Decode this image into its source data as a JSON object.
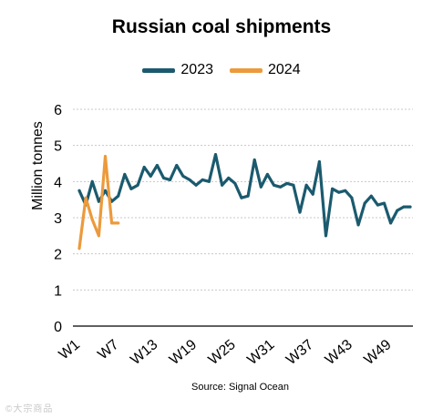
{
  "chart_data": {
    "type": "line",
    "title": "Russian coal shipments",
    "ylabel": "Million tonnes",
    "xlabel": "",
    "ylim": [
      0,
      6
    ],
    "yticks": [
      0,
      1,
      2,
      3,
      4,
      5,
      6
    ],
    "grid": true,
    "legend_position": "top-center",
    "x_tick_labels": [
      {
        "week": 1,
        "label": "W1"
      },
      {
        "week": 7,
        "label": "W7"
      },
      {
        "week": 13,
        "label": "W13"
      },
      {
        "week": 19,
        "label": "W19"
      },
      {
        "week": 25,
        "label": "W25"
      },
      {
        "week": 31,
        "label": "W31"
      },
      {
        "week": 37,
        "label": "W37"
      },
      {
        "week": 43,
        "label": "W43"
      },
      {
        "week": 49,
        "label": "W49"
      }
    ],
    "series": [
      {
        "name": "2023",
        "color": "#1b5a6e",
        "x": [
          1,
          2,
          3,
          4,
          5,
          6,
          7,
          8,
          9,
          10,
          11,
          12,
          13,
          14,
          15,
          16,
          17,
          18,
          19,
          20,
          21,
          22,
          23,
          24,
          25,
          26,
          27,
          28,
          29,
          30,
          31,
          32,
          33,
          34,
          35,
          36,
          37,
          38,
          39,
          40,
          41,
          42,
          43,
          44,
          45,
          46,
          47,
          48,
          49,
          50,
          51,
          52
        ],
        "values": [
          3.75,
          3.35,
          4.0,
          3.45,
          3.75,
          3.45,
          3.6,
          4.2,
          3.8,
          3.9,
          4.4,
          4.15,
          4.45,
          4.1,
          4.05,
          4.45,
          4.15,
          4.05,
          3.9,
          4.05,
          4.0,
          4.75,
          3.9,
          4.1,
          3.95,
          3.55,
          3.6,
          4.6,
          3.85,
          4.2,
          3.9,
          3.85,
          3.95,
          3.9,
          3.15,
          3.9,
          3.65,
          4.55,
          2.5,
          3.8,
          3.7,
          3.75,
          3.55,
          2.8,
          3.4,
          3.6,
          3.35,
          3.4,
          2.85,
          3.2,
          3.3,
          3.3
        ]
      },
      {
        "name": "2024",
        "color": "#ec9a3c",
        "x": [
          1,
          2,
          3,
          4,
          5,
          6,
          7
        ],
        "values": [
          2.15,
          3.55,
          2.95,
          2.5,
          4.7,
          2.85,
          2.85
        ]
      }
    ]
  },
  "source_text": "Source: Signal Ocean",
  "watermark_text": "©大宗商品"
}
